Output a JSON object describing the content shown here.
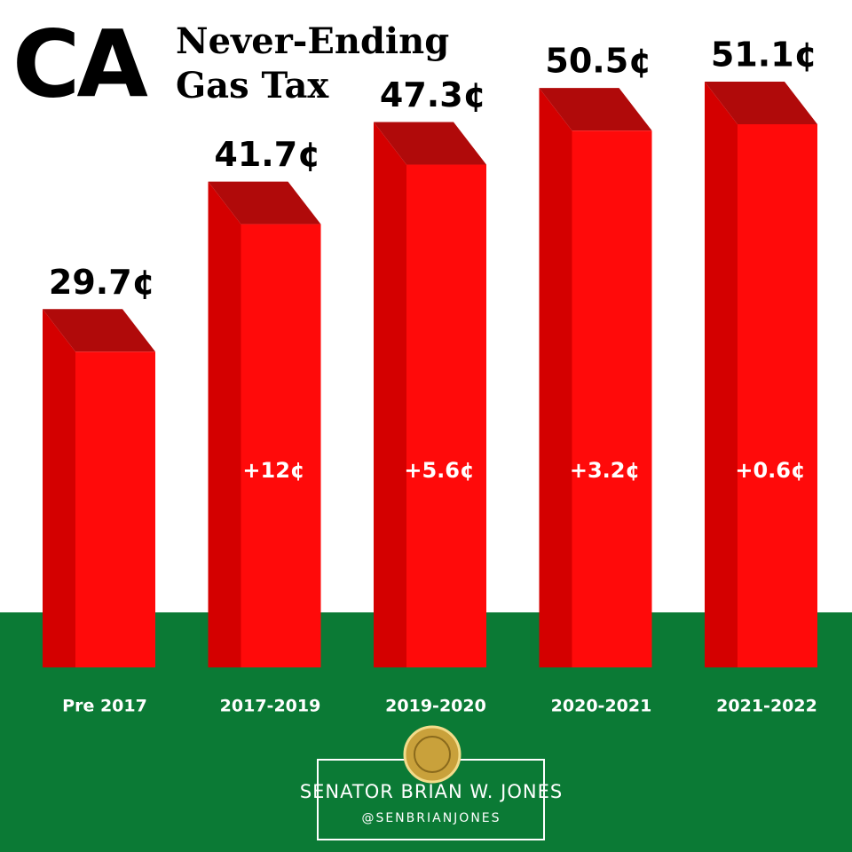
{
  "chart_data": {
    "type": "bar3d",
    "title_main": "CA",
    "title_lines": [
      "Never-Ending",
      "Gas Tax"
    ],
    "categories": [
      "Pre 2017",
      "2017-2019",
      "2019-2020",
      "2020-2021",
      "2021-2022"
    ],
    "values": [
      29.7,
      41.7,
      47.3,
      50.5,
      51.1
    ],
    "value_labels": [
      "29.7¢",
      "41.7¢",
      "47.3¢",
      "50.5¢",
      "51.1¢"
    ],
    "change_labels": [
      null,
      "+12¢",
      "+5.6¢",
      "+3.2¢",
      "+0.6¢"
    ],
    "color": "#ff0a0a"
  },
  "footer": {
    "name": "SENATOR BRIAN W. JONES",
    "handle": "@SENBRIANJONES"
  }
}
